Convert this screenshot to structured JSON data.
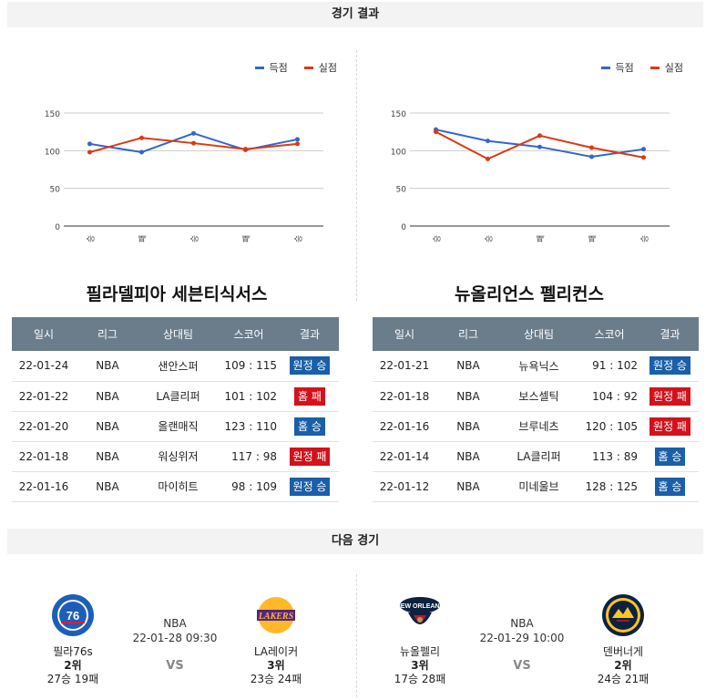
{
  "headers": {
    "results": "경기 결과",
    "next": "다음 경기"
  },
  "legend": {
    "scored": "득점",
    "conceded": "실점"
  },
  "colors": {
    "scored": "#3366cc",
    "conceded": "#dc3912",
    "win": "#1a5fa8",
    "loss": "#d3121b",
    "table_header": "#6b7c8b"
  },
  "chart_data": [
    {
      "type": "line",
      "categories": [
        "승",
        "패",
        "승",
        "패",
        "승"
      ],
      "series": [
        {
          "name": "득점",
          "values": [
            109,
            98,
            123,
            101,
            115
          ]
        },
        {
          "name": "실점",
          "values": [
            98,
            117,
            110,
            102,
            109
          ]
        }
      ],
      "yticks": [
        0,
        50,
        100,
        150
      ],
      "ylim": [
        0,
        150
      ],
      "legend": "top-right",
      "grid": true
    },
    {
      "type": "line",
      "categories": [
        "승",
        "승",
        "패",
        "패",
        "승"
      ],
      "series": [
        {
          "name": "득점",
          "values": [
            128,
            113,
            105,
            92,
            102
          ]
        },
        {
          "name": "실점",
          "values": [
            125,
            89,
            120,
            104,
            91
          ]
        }
      ],
      "yticks": [
        0,
        50,
        100,
        150
      ],
      "ylim": [
        0,
        150
      ],
      "legend": "top-right",
      "grid": true
    }
  ],
  "columns": [
    "일시",
    "리그",
    "상대팀",
    "스코어",
    "결과"
  ],
  "teams": [
    {
      "title": "필라델피아 세븐티식서스",
      "rows": [
        {
          "date": "22-01-24",
          "league": "NBA",
          "opponent": "샌안스퍼",
          "score": "109 : 115",
          "result": "원정 승",
          "type": "win"
        },
        {
          "date": "22-01-22",
          "league": "NBA",
          "opponent": "LA클리퍼",
          "score": "101 : 102",
          "result": "홈 패",
          "type": "loss"
        },
        {
          "date": "22-01-20",
          "league": "NBA",
          "opponent": "올랜매직",
          "score": "123 : 110",
          "result": "홈 승",
          "type": "win"
        },
        {
          "date": "22-01-18",
          "league": "NBA",
          "opponent": "워싱위저",
          "score": "117 : 98",
          "result": "원정 패",
          "type": "loss"
        },
        {
          "date": "22-01-16",
          "league": "NBA",
          "opponent": "마이히트",
          "score": "98 : 109",
          "result": "원정 승",
          "type": "win"
        }
      ]
    },
    {
      "title": "뉴올리언스 펠리컨스",
      "rows": [
        {
          "date": "22-01-21",
          "league": "NBA",
          "opponent": "뉴욕닉스",
          "score": "91 : 102",
          "result": "원정 승",
          "type": "win"
        },
        {
          "date": "22-01-18",
          "league": "NBA",
          "opponent": "보스셀틱",
          "score": "104 : 92",
          "result": "원정 패",
          "type": "loss"
        },
        {
          "date": "22-01-16",
          "league": "NBA",
          "opponent": "브루네츠",
          "score": "120 : 105",
          "result": "원정 패",
          "type": "loss"
        },
        {
          "date": "22-01-14",
          "league": "NBA",
          "opponent": "LA클리퍼",
          "score": "113 : 89",
          "result": "홈 승",
          "type": "win"
        },
        {
          "date": "22-01-12",
          "league": "NBA",
          "opponent": "미네울브",
          "score": "128 : 125",
          "result": "홈 승",
          "type": "win"
        }
      ]
    }
  ],
  "next_games": [
    {
      "league": "NBA",
      "datetime": "22-01-28 09:30",
      "vs": "VS",
      "home": {
        "name": "필라76s",
        "rank": "2위",
        "record": "27승 19패",
        "logo_icon": "76ers-logo"
      },
      "away": {
        "name": "LA레이커",
        "rank": "3위",
        "record": "23승 24패",
        "logo_icon": "lakers-logo"
      }
    },
    {
      "league": "NBA",
      "datetime": "22-01-29 10:00",
      "vs": "VS",
      "home": {
        "name": "뉴올펠리",
        "rank": "3위",
        "record": "17승 28패",
        "logo_icon": "pelicans-logo"
      },
      "away": {
        "name": "덴버너게",
        "rank": "2위",
        "record": "24승 21패",
        "logo_icon": "nuggets-logo"
      }
    }
  ]
}
